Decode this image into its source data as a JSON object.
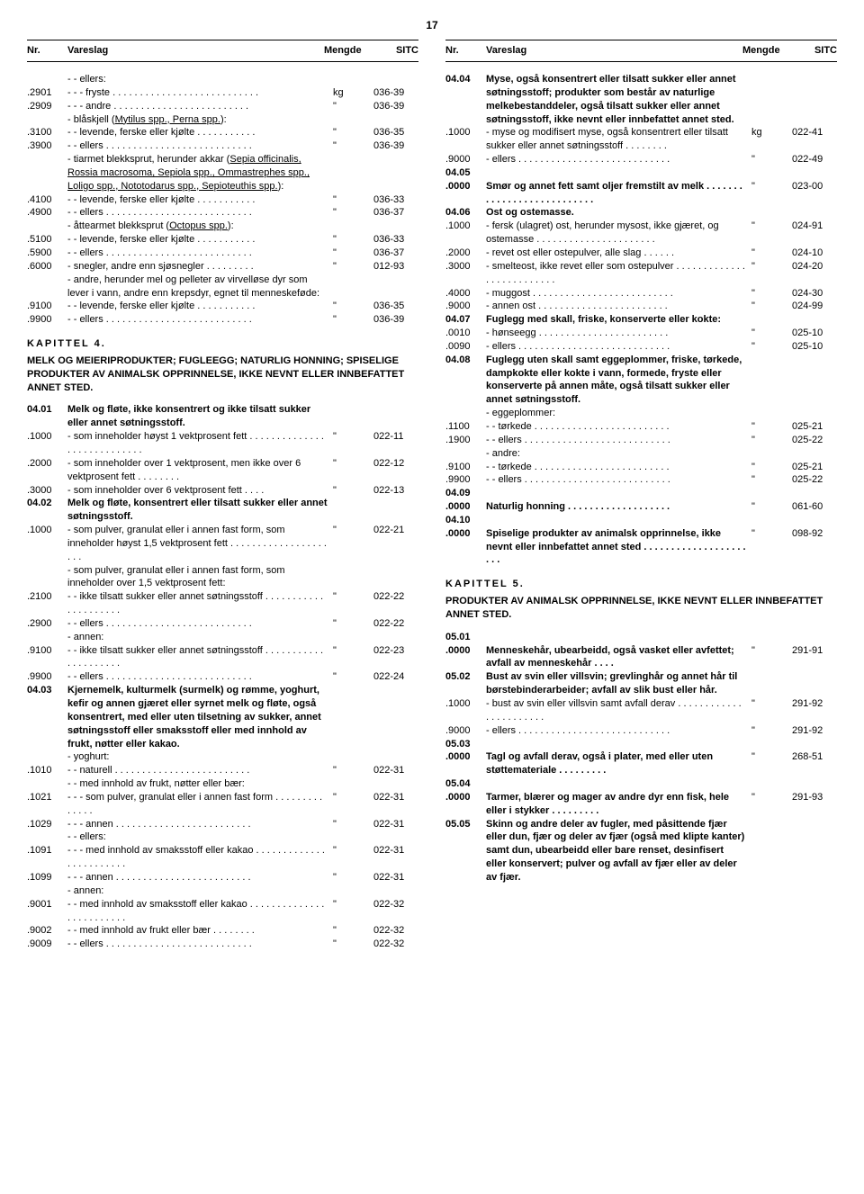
{
  "page_number": "17",
  "header": {
    "nr": "Nr.",
    "var": "Vareslag",
    "m": "Mengde",
    "sitc": "SITC"
  },
  "left": [
    {
      "nr": "",
      "var": "- - ellers:",
      "m": "",
      "sitc": ""
    },
    {
      "nr": ".2901",
      "var": "- - - fryste . . . . . . . . . . . . . . . . . . . . . . . . . . .",
      "m": "kg",
      "sitc": "036-39"
    },
    {
      "nr": ".2909",
      "var": "- - - andre . . . . . . . . . . . . . . . . . . . . . . . . .",
      "m": "\"",
      "sitc": "036-39"
    },
    {
      "nr": "",
      "var": "- blåskjell (<u>Mytilus spp., Perna spp.</u>):",
      "m": "",
      "sitc": ""
    },
    {
      "nr": ".3100",
      "var": "- - levende, ferske eller kjølte . . . . . . . . . . .",
      "m": "\"",
      "sitc": "036-35"
    },
    {
      "nr": ".3900",
      "var": "- - ellers . . . . . . . . . . . . . . . . . . . . . . . . . . .",
      "m": "\"",
      "sitc": "036-39"
    },
    {
      "nr": "",
      "var": "- tiarmet blekksprut, herunder akkar (<u>Sepia officinalis, Rossia macrosoma, Sepiola spp., Ommastrephes spp., Loligo spp., Nototodarus spp., Sepioteuthis spp.</u>):",
      "m": "",
      "sitc": ""
    },
    {
      "nr": ".4100",
      "var": "- - levende, ferske eller kjølte . . . . . . . . . . .",
      "m": "\"",
      "sitc": "036-33"
    },
    {
      "nr": ".4900",
      "var": "- - ellers . . . . . . . . . . . . . . . . . . . . . . . . . . .",
      "m": "\"",
      "sitc": "036-37"
    },
    {
      "nr": "",
      "var": "- åttearmet blekksprut (<u>Octopus spp.</u>):",
      "m": "",
      "sitc": ""
    },
    {
      "nr": ".5100",
      "var": "- - levende, ferske eller kjølte . . . . . . . . . . .",
      "m": "\"",
      "sitc": "036-33"
    },
    {
      "nr": ".5900",
      "var": "- - ellers . . . . . . . . . . . . . . . . . . . . . . . . . . .",
      "m": "\"",
      "sitc": "036-37"
    },
    {
      "nr": ".6000",
      "var": "- snegler, andre enn sjøsnegler . . . . . . . . .",
      "m": "\"",
      "sitc": "012-93"
    },
    {
      "nr": "",
      "var": "- andre, herunder mel og pelleter av virvelløse dyr som lever i vann, andre enn krepsdyr, egnet til menneskeføde:",
      "m": "",
      "sitc": ""
    },
    {
      "nr": ".9100",
      "var": "- - levende, ferske eller kjølte . . . . . . . . . . .",
      "m": "\"",
      "sitc": "036-35"
    },
    {
      "nr": ".9900",
      "var": "- - ellers . . . . . . . . . . . . . . . . . . . . . . . . . . .",
      "m": "\"",
      "sitc": "036-39"
    }
  ],
  "left_chapter": "KAPITTEL 4.",
  "left_chapter_title": "MELK OG MEIERIPRODUKTER; FUGLEEGG; NATURLIG HONNING; SPISELIGE PRODUKTER AV ANIMALSK OPPRINNELSE, IKKE NEVNT ELLER INNBEFATTET ANNET STED.",
  "left2": [
    {
      "nr": "04.01",
      "var": "Melk og fløte, ikke konsentrert og ikke tilsatt sukker eller annet søtningsstoff.",
      "m": "",
      "sitc": "",
      "bold": true
    },
    {
      "nr": ".1000",
      "var": "- som inneholder høyst 1 vektprosent fett . . . . . . . . . . . . . . . . . . . . . . . . . . . .",
      "m": "\"",
      "sitc": "022-11"
    },
    {
      "nr": ".2000",
      "var": "- som inneholder over 1 vektprosent, men ikke over 6 vektprosent fett . . . . . . . .",
      "m": "\"",
      "sitc": "022-12"
    },
    {
      "nr": ".3000",
      "var": "- som inneholder over 6 vektprosent fett . . . .",
      "m": "\"",
      "sitc": "022-13"
    },
    {
      "nr": "04.02",
      "var": "Melk og fløte, konsentrert eller tilsatt sukker eller annet søtningsstoff.",
      "m": "",
      "sitc": "",
      "bold": true
    },
    {
      "nr": ".1000",
      "var": "- som pulver, granulat eller i annen fast form, som inneholder høyst 1,5 vektprosent fett . . . . . . . . . . . . . . . . . . . . .",
      "m": "\"",
      "sitc": "022-21"
    },
    {
      "nr": "",
      "var": "- som pulver, granulat eller i annen fast form, som inneholder over 1,5 vektprosent fett:",
      "m": "",
      "sitc": ""
    },
    {
      "nr": ".2100",
      "var": "- - ikke tilsatt sukker eller annet søtningsstoff . . . . . . . . . . . . . . . . . . . . .",
      "m": "\"",
      "sitc": "022-22"
    },
    {
      "nr": ".2900",
      "var": "- - ellers . . . . . . . . . . . . . . . . . . . . . . . . . . .",
      "m": "\"",
      "sitc": "022-22"
    },
    {
      "nr": "",
      "var": "- annen:",
      "m": "",
      "sitc": ""
    },
    {
      "nr": ".9100",
      "var": "- - ikke tilsatt sukker eller annet søtningsstoff . . . . . . . . . . . . . . . . . . . . .",
      "m": "\"",
      "sitc": "022-23"
    },
    {
      "nr": ".9900",
      "var": "- - ellers . . . . . . . . . . . . . . . . . . . . . . . . . . .",
      "m": "\"",
      "sitc": "022-24"
    },
    {
      "nr": "04.03",
      "var": "Kjernemelk, kulturmelk (surmelk) og rømme, yoghurt, kefir og annen gjæret eller syrnet melk og fløte, også konsentrert, med eller uten tilsetning av sukker, annet søtningsstoff eller smaksstoff eller med innhold av frukt, nøtter eller kakao.",
      "m": "",
      "sitc": "",
      "bold": true
    },
    {
      "nr": "",
      "var": "- yoghurt:",
      "m": "",
      "sitc": ""
    },
    {
      "nr": ".1010",
      "var": "- - naturell . . . . . . . . . . . . . . . . . . . . . . . . .",
      "m": "\"",
      "sitc": "022-31"
    },
    {
      "nr": "",
      "var": "- - med innhold av frukt, nøtter eller bær:",
      "m": "",
      "sitc": ""
    },
    {
      "nr": ".1021",
      "var": "- - - som pulver, granulat eller i annen fast form . . . . . . . . . . . . . .",
      "m": "\"",
      "sitc": "022-31"
    },
    {
      "nr": ".1029",
      "var": "- - - annen . . . . . . . . . . . . . . . . . . . . . . . . .",
      "m": "\"",
      "sitc": "022-31"
    },
    {
      "nr": "",
      "var": "- - ellers:",
      "m": "",
      "sitc": ""
    },
    {
      "nr": ".1091",
      "var": "- - - med innhold av smaksstoff eller kakao . . . . . . . . . . . . . . . . . . . . . . . .",
      "m": "\"",
      "sitc": "022-31"
    },
    {
      "nr": ".1099",
      "var": "- - - annen . . . . . . . . . . . . . . . . . . . . . . . . .",
      "m": "\"",
      "sitc": "022-31"
    },
    {
      "nr": "",
      "var": "- annen:",
      "m": "",
      "sitc": ""
    },
    {
      "nr": ".9001",
      "var": "- - med innhold av smaksstoff eller kakao . . . . . . . . . . . . . . . . . . . . . . . . .",
      "m": "\"",
      "sitc": "022-32"
    },
    {
      "nr": ".9002",
      "var": "- - med innhold av frukt eller bær . . . . . . . .",
      "m": "\"",
      "sitc": "022-32"
    },
    {
      "nr": ".9009",
      "var": "- - ellers . . . . . . . . . . . . . . . . . . . . . . . . . . .",
      "m": "\"",
      "sitc": "022-32"
    }
  ],
  "right": [
    {
      "nr": "04.04",
      "var": "Myse, også konsentrert eller tilsatt sukker eller annet søtningsstoff; produkter som består av naturlige melkebestanddeler, også tilsatt sukker eller annet søtningsstoff, ikke nevnt eller innbefattet annet sted.",
      "m": "",
      "sitc": "",
      "bold": true
    },
    {
      "nr": ".1000",
      "var": "- myse og modifisert myse, også konsentrert eller tilsatt sukker eller annet søtningsstoff . . . . . . . .",
      "m": "kg",
      "sitc": "022-41"
    },
    {
      "nr": ".9000",
      "var": "- ellers . . . . . . . . . . . . . . . . . . . . . . . . . . . .",
      "m": "\"",
      "sitc": "022-49"
    },
    {
      "nr": "04.05",
      "var": "",
      "m": "",
      "sitc": "",
      "bold": true
    },
    {
      "nr": ".0000",
      "var": "Smør og annet fett samt oljer fremstilt av melk . . . . . . . . . . . . . . . . . . . . . . . . . . .",
      "m": "\"",
      "sitc": "023-00",
      "bold": true
    },
    {
      "nr": "04.06",
      "var": "Ost og ostemasse.",
      "m": "",
      "sitc": "",
      "bold": true
    },
    {
      "nr": ".1000",
      "var": "- fersk (ulagret) ost, herunder mysost, ikke gjæret, og ostemasse . . . . . . . . . . . . . . . . . . . . . .",
      "m": "\"",
      "sitc": "024-91"
    },
    {
      "nr": ".2000",
      "var": "- revet ost eller ostepulver, alle slag . . . . . .",
      "m": "\"",
      "sitc": "024-10"
    },
    {
      "nr": ".3000",
      "var": "- smelteost, ikke revet eller som ostepulver . . . . . . . . . . . . . . . . . . . . . . . . . .",
      "m": "\"",
      "sitc": "024-20"
    },
    {
      "nr": ".4000",
      "var": "- muggost . . . . . . . . . . . . . . . . . . . . . . . . . .",
      "m": "\"",
      "sitc": "024-30"
    },
    {
      "nr": ".9000",
      "var": "- annen ost . . . . . . . . . . . . . . . . . . . . . . . .",
      "m": "\"",
      "sitc": "024-99"
    },
    {
      "nr": "04.07",
      "var": "Fuglegg med skall, friske, konserverte eller kokte:",
      "m": "",
      "sitc": "",
      "bold": true
    },
    {
      "nr": ".0010",
      "var": "- hønseegg . . . . . . . . . . . . . . . . . . . . . . . .",
      "m": "\"",
      "sitc": "025-10"
    },
    {
      "nr": ".0090",
      "var": "- ellers . . . . . . . . . . . . . . . . . . . . . . . . . . . .",
      "m": "\"",
      "sitc": "025-10"
    },
    {
      "nr": "04.08",
      "var": "Fuglegg uten skall samt eggeplommer, friske, tørkede, dampkokte eller kokte i vann, formede, fryste eller konserverte på annen måte, også tilsatt sukker eller annet søtningsstoff.",
      "m": "",
      "sitc": "",
      "bold": true
    },
    {
      "nr": "",
      "var": "- eggeplommer:",
      "m": "",
      "sitc": ""
    },
    {
      "nr": ".1100",
      "var": "- - tørkede . . . . . . . . . . . . . . . . . . . . . . . . .",
      "m": "\"",
      "sitc": "025-21"
    },
    {
      "nr": ".1900",
      "var": "- - ellers . . . . . . . . . . . . . . . . . . . . . . . . . . .",
      "m": "\"",
      "sitc": "025-22"
    },
    {
      "nr": "",
      "var": "- andre:",
      "m": "",
      "sitc": ""
    },
    {
      "nr": ".9100",
      "var": "- - tørkede . . . . . . . . . . . . . . . . . . . . . . . . .",
      "m": "\"",
      "sitc": "025-21"
    },
    {
      "nr": ".9900",
      "var": "- - ellers . . . . . . . . . . . . . . . . . . . . . . . . . . .",
      "m": "\"",
      "sitc": "025-22"
    },
    {
      "nr": "04.09",
      "var": "",
      "m": "",
      "sitc": "",
      "bold": true
    },
    {
      "nr": ".0000",
      "var": "Naturlig honning . . . . . . . . . . . . . . . . . . .",
      "m": "\"",
      "sitc": "061-60",
      "bold": true
    },
    {
      "nr": "04.10",
      "var": "",
      "m": "",
      "sitc": "",
      "bold": true
    },
    {
      "nr": ".0000",
      "var": "Spiselige produkter av animalsk opprinnelse, ikke nevnt eller innbefattet annet sted . . . . . . . . . . . . . . . . . . . . . .",
      "m": "\"",
      "sitc": "098-92",
      "bold": true
    }
  ],
  "right_chapter": "KAPITTEL 5.",
  "right_chapter_title": "PRODUKTER AV ANIMALSK OPPRINNELSE, IKKE NEVNT ELLER INNBEFATTET ANNET STED.",
  "right2": [
    {
      "nr": "05.01",
      "var": "",
      "m": "",
      "sitc": "",
      "bold": true
    },
    {
      "nr": ".0000",
      "var": "Menneskehår, ubearbeidd, også vasket eller avfettet; avfall av menneskehår . . . .",
      "m": "\"",
      "sitc": "291-91",
      "bold": true
    },
    {
      "nr": "05.02",
      "var": "Bust av svin eller villsvin; grevlinghår og annet hår til børstebinderarbeider; avfall av slik bust eller hår.",
      "m": "",
      "sitc": "",
      "bold": true
    },
    {
      "nr": ".1000",
      "var": "- bust av svin eller villsvin samt avfall derav . . . . . . . . . . . . . . . . . . . . . . .",
      "m": "\"",
      "sitc": "291-92"
    },
    {
      "nr": ".9000",
      "var": "- ellers . . . . . . . . . . . . . . . . . . . . . . . . . . . .",
      "m": "\"",
      "sitc": "291-92"
    },
    {
      "nr": "05.03",
      "var": "",
      "m": "",
      "sitc": "",
      "bold": true
    },
    {
      "nr": ".0000",
      "var": "Tagl og avfall derav, også i plater, med eller uten støttemateriale . . . . . . . . .",
      "m": "\"",
      "sitc": "268-51",
      "bold": true
    },
    {
      "nr": "05.04",
      "var": "",
      "m": "",
      "sitc": "",
      "bold": true
    },
    {
      "nr": ".0000",
      "var": "Tarmer, blærer og mager av andre dyr enn fisk, hele eller i stykker . . . . . . . . .",
      "m": "\"",
      "sitc": "291-93",
      "bold": true
    },
    {
      "nr": "05.05",
      "var": "Skinn og andre deler av fugler, med påsittende fjær eller dun, fjær og deler av fjær (også med klipte kanter) samt dun, ubearbeidd eller bare renset, desinfisert eller konservert; pulver og avfall av fjær eller av deler av fjær.",
      "m": "",
      "sitc": "",
      "bold": true
    }
  ]
}
